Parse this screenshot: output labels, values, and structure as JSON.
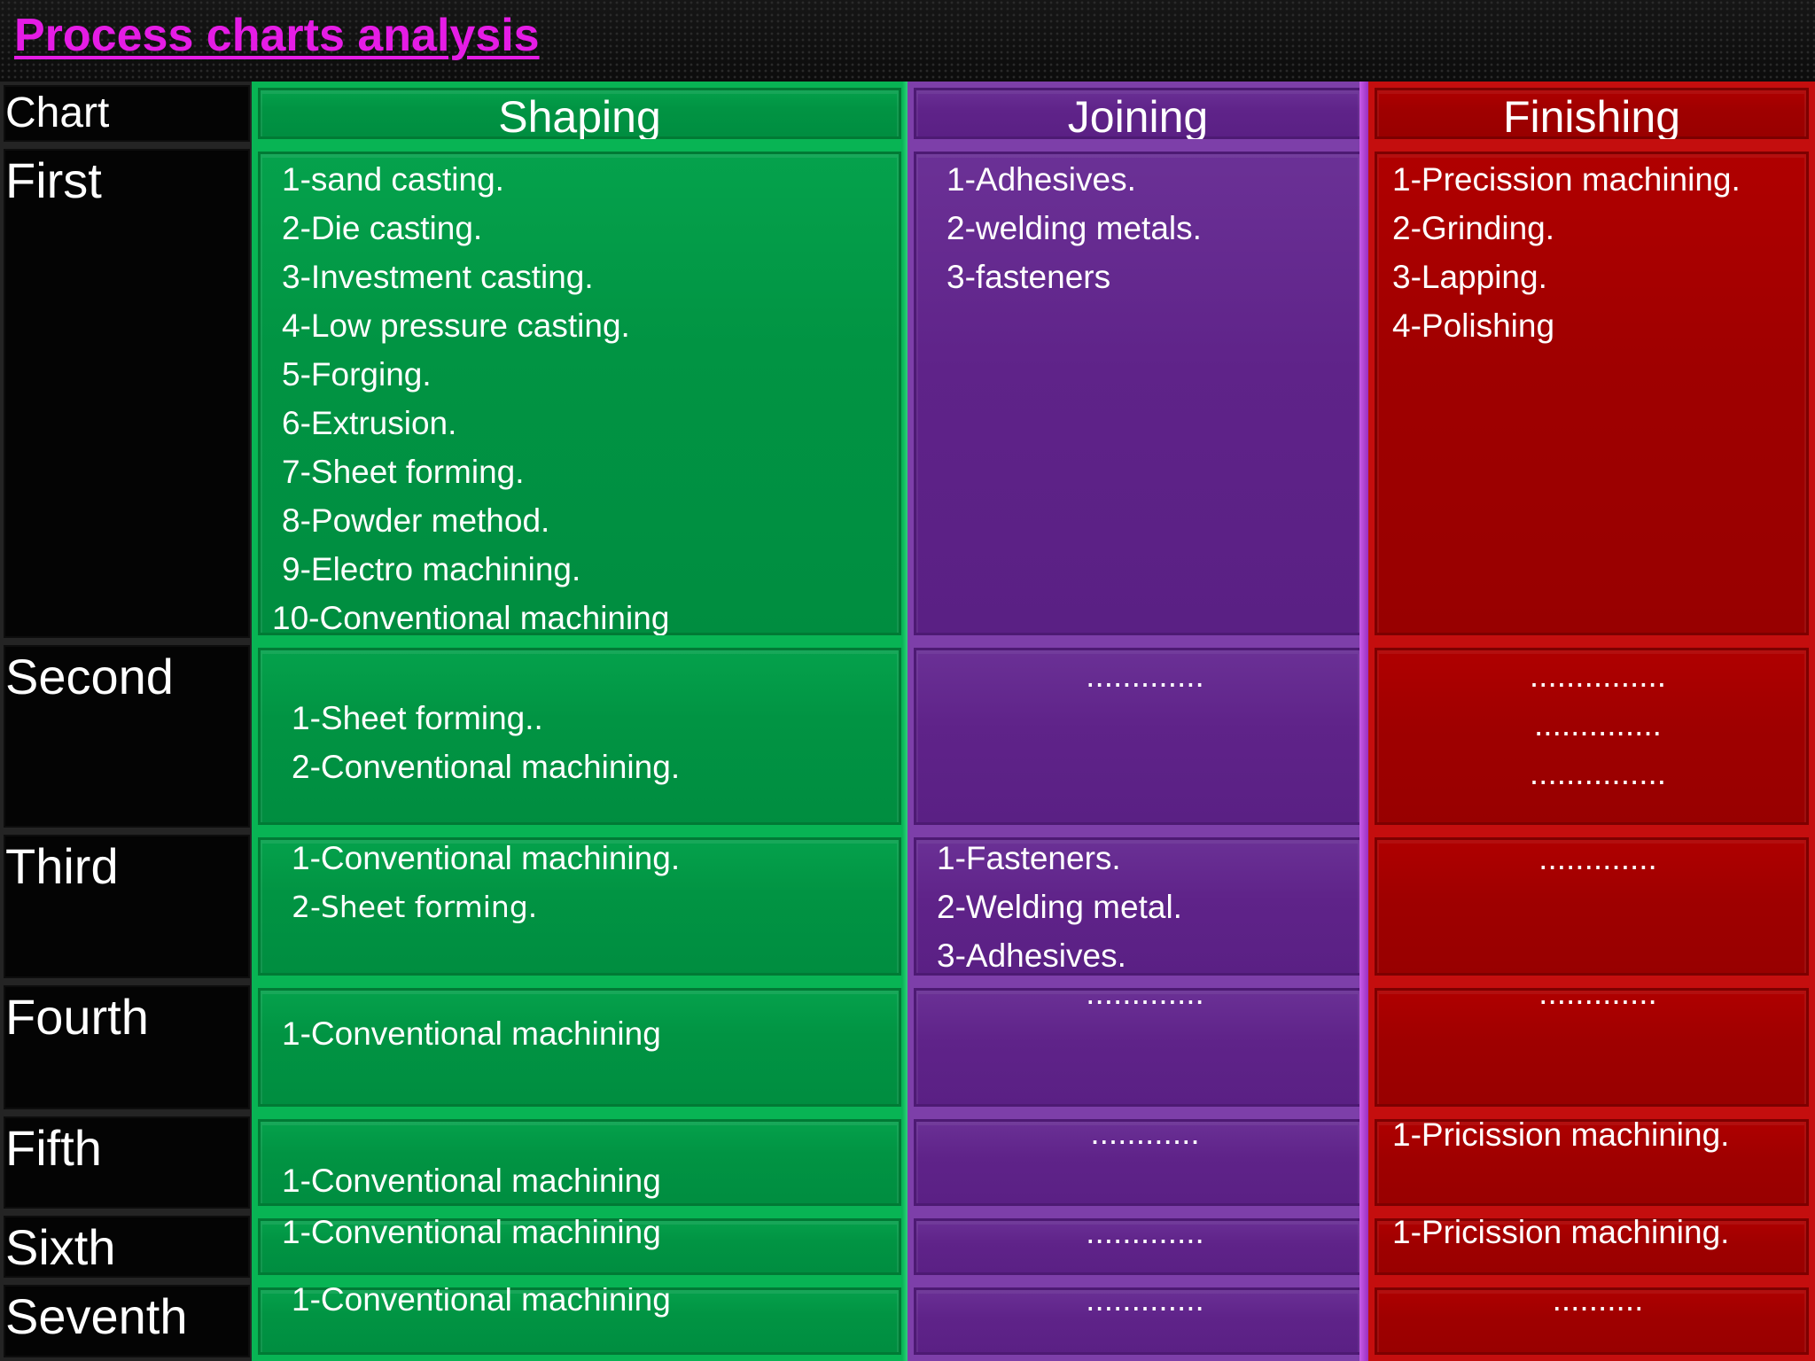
{
  "title": "Process charts analysis",
  "columns": {
    "label": "Chart",
    "shaping": "Shaping",
    "joining": "Joining",
    "finishing": "Finishing"
  },
  "rows": [
    {
      "label": "First",
      "shaping": [
        "1-sand casting.",
        "2-Die casting.",
        "3-Investment casting.",
        "4-Low pressure casting.",
        "5-Forging.",
        "6-Extrusion.",
        "7-Sheet forming.",
        "8-Powder method.",
        "9-Electro machining.",
        "10-Conventional machining"
      ],
      "joining": [
        "1-Adhesives.",
        "2-welding metals.",
        "3-fasteners"
      ],
      "finishing": [
        "1-Precission machining.",
        "2-Grinding.",
        "3-Lapping.",
        "4-Polishing"
      ]
    },
    {
      "label": "Second",
      "shaping": [
        "1-Sheet forming..",
        "2-Conventional machining."
      ],
      "joining": ".............",
      "finishing": [
        "...............",
        "..............",
        "...............",
        "..............."
      ]
    },
    {
      "label": "Third",
      "shaping": [
        "1-Conventional machining.",
        "2-Sheet forming."
      ],
      "joining": [
        "1-Fasteners.",
        "2-Welding metal.",
        "3-Adhesives."
      ],
      "finishing": "............."
    },
    {
      "label": "Fourth",
      "shaping": [
        "1-Conventional machining"
      ],
      "joining": ".............",
      "finishing": "............."
    },
    {
      "label": "Fifth",
      "shaping": [
        "1-Conventional machining"
      ],
      "joining": "............",
      "finishing": [
        "1-Pricission machining."
      ]
    },
    {
      "label": "Sixth",
      "shaping": [
        "1-Conventional machining"
      ],
      "joining": ".............",
      "finishing": [
        "1-Pricission machining."
      ]
    },
    {
      "label": "Seventh",
      "shaping": [
        "1-Conventional machining"
      ],
      "joining": ".............",
      "finishing": ".........."
    }
  ]
}
